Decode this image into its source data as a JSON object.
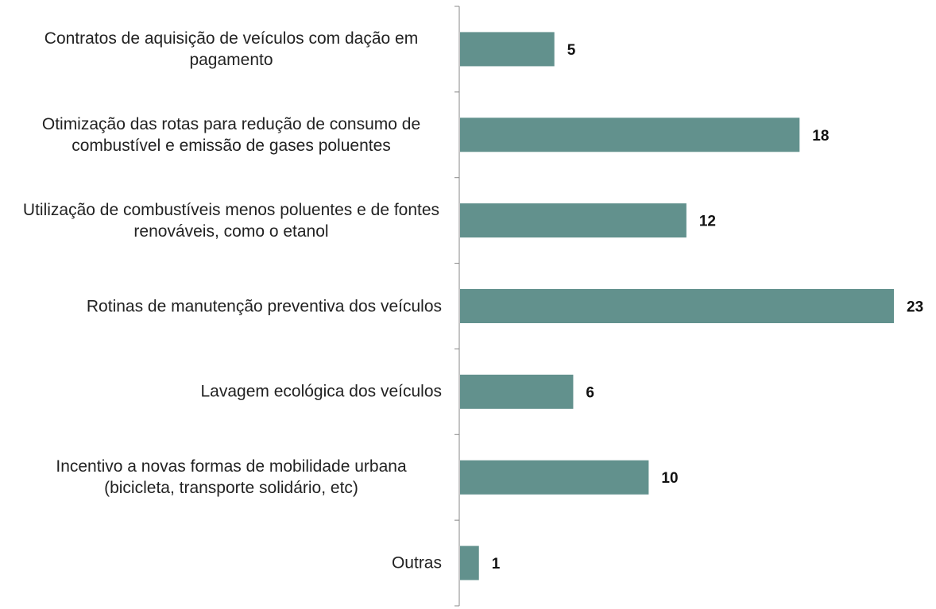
{
  "chart_data": {
    "type": "bar",
    "orientation": "horizontal",
    "color": "#62918d",
    "categories": [
      "Contratos de aquisição de veículos com dação em pagamento",
      "Otimização das rotas para redução de consumo de combustível e emissão de gases poluentes",
      "Utilização de combustíveis menos poluentes e de fontes renováveis, como o etanol",
      "Rotinas de manutenção preventiva dos veículos",
      "Lavagem ecológica dos veículos",
      "Incentivo a novas formas de mobilidade urbana (bicicleta, transporte solidário, etc)",
      "Outras"
    ],
    "values": [
      5,
      18,
      12,
      23,
      6,
      10,
      1
    ]
  }
}
